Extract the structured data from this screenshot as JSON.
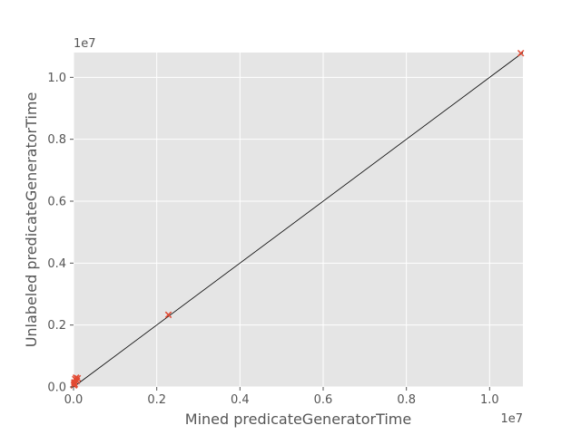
{
  "chart_data": {
    "type": "scatter",
    "title": "",
    "xlabel": "Mined predicateGeneratorTime",
    "ylabel": "Unlabeled predicateGeneratorTime",
    "x_offset_label": "1e7",
    "y_offset_label": "1e7",
    "xlim": [
      0,
      10800000
    ],
    "ylim": [
      0,
      10800000
    ],
    "x_ticks": [
      0,
      2000000,
      4000000,
      6000000,
      8000000,
      10000000
    ],
    "x_tick_labels": [
      "0.0",
      "0.2",
      "0.4",
      "0.6",
      "0.8",
      "1.0"
    ],
    "y_ticks": [
      0,
      2000000,
      4000000,
      6000000,
      8000000,
      10000000
    ],
    "y_tick_labels": [
      "0.0",
      "0.2",
      "0.4",
      "0.6",
      "0.8",
      "1.0"
    ],
    "grid": true,
    "style": "ggplot",
    "marker": "x",
    "marker_color": "#E24A33",
    "reference_line": {
      "from": [
        0,
        0
      ],
      "to": [
        10800000,
        10800000
      ],
      "color": "#000000"
    },
    "points": [
      {
        "x": 10000,
        "y": 50000
      },
      {
        "x": 20000,
        "y": 150000
      },
      {
        "x": 30000,
        "y": 80000
      },
      {
        "x": 40000,
        "y": 250000
      },
      {
        "x": 60000,
        "y": 300000
      },
      {
        "x": 80000,
        "y": 200000
      },
      {
        "x": 100000,
        "y": 280000
      },
      {
        "x": 15000,
        "y": 100000
      },
      {
        "x": 2280000,
        "y": 2330000
      },
      {
        "x": 10750000,
        "y": 10780000
      }
    ]
  }
}
